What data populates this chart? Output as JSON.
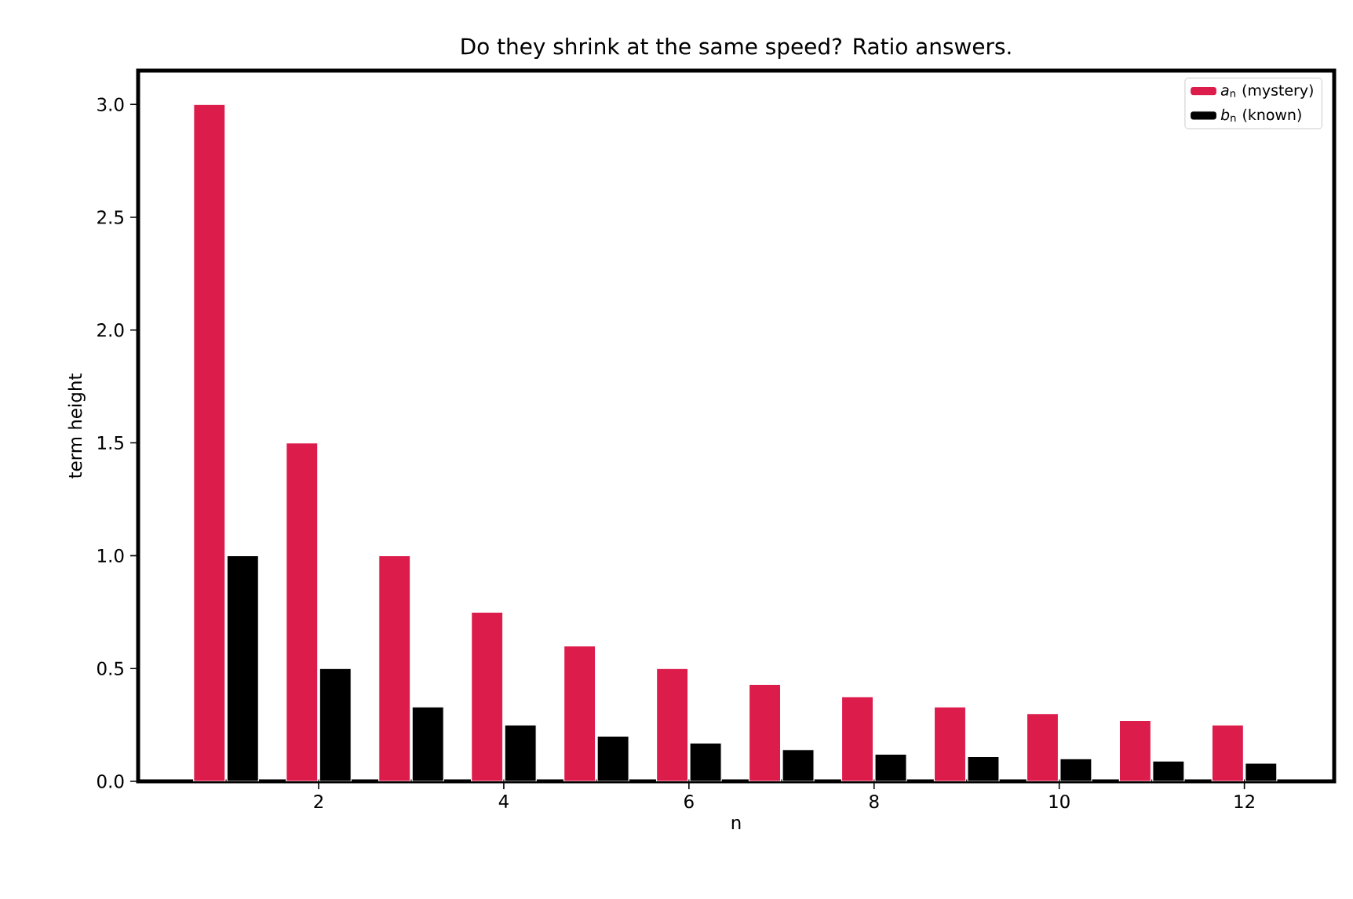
{
  "chart_data": {
    "type": "bar",
    "title": "Do they shrink at the same speed? Ratio answers.",
    "xlabel": "n",
    "ylabel": "term height",
    "x": [
      1,
      2,
      3,
      4,
      5,
      6,
      7,
      8,
      9,
      10,
      11,
      12
    ],
    "series": [
      {
        "name": "*a*$_{n}$ (mystery)",
        "color": "#dc1c4b",
        "values": [
          3.0,
          1.5,
          1.0,
          0.75,
          0.6,
          0.5,
          0.43,
          0.375,
          0.33,
          0.3,
          0.27,
          0.25
        ]
      },
      {
        "name": "*b*$_{n}$ (known)",
        "color": "#000000",
        "values": [
          1.0,
          0.5,
          0.33,
          0.25,
          0.2,
          0.17,
          0.14,
          0.12,
          0.11,
          0.1,
          0.09,
          0.08
        ]
      }
    ],
    "xlim": [
      0.05,
      12.97
    ],
    "ylim": [
      0,
      3.15
    ],
    "xticks": [
      2,
      4,
      6,
      8,
      10,
      12
    ],
    "yticks": [
      {
        "value": 0,
        "label": "0.0"
      },
      {
        "value": 0.5,
        "label": "0.5"
      },
      {
        "value": 1.0,
        "label": "1.0"
      },
      {
        "value": 1.5,
        "label": "1.5"
      },
      {
        "value": 2.0,
        "label": "2.0"
      },
      {
        "value": 2.5,
        "label": "2.5"
      },
      {
        "value": 3.0,
        "label": "3.0"
      }
    ],
    "legend": "top right"
  }
}
